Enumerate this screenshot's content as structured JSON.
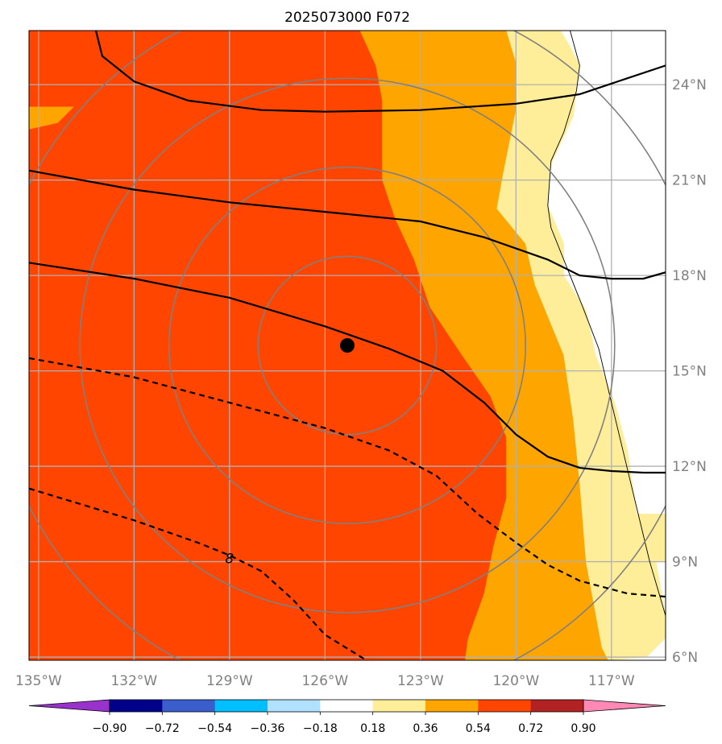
{
  "chart_data": {
    "type": "heatmap",
    "title": "2025073000 F072",
    "projection": "lon-lat map",
    "x_range": [
      -135.3,
      -115.3
    ],
    "y_range": [
      5.9,
      25.7
    ],
    "xticks": [
      {
        "value": -135,
        "label": "135°W"
      },
      {
        "value": -132,
        "label": "132°W"
      },
      {
        "value": -129,
        "label": "129°W"
      },
      {
        "value": -126,
        "label": "126°W"
      },
      {
        "value": -123,
        "label": "123°W"
      },
      {
        "value": -120,
        "label": "120°W"
      },
      {
        "value": -117,
        "label": "117°W"
      }
    ],
    "yticks": [
      {
        "value": 6,
        "label": "6°N"
      },
      {
        "value": 9,
        "label": "9°N"
      },
      {
        "value": 12,
        "label": "12°N"
      },
      {
        "value": 15,
        "label": "15°N"
      },
      {
        "value": 18,
        "label": "18°N"
      },
      {
        "value": 21,
        "label": "21°N"
      },
      {
        "value": 24,
        "label": "24°N"
      }
    ],
    "grid": true,
    "colorbar": {
      "orientation": "horizontal",
      "extend": "both",
      "levels": [
        "−0.90",
        "−0.72",
        "−0.54",
        "−0.36",
        "−0.18",
        "0.18",
        "0.36",
        "0.54",
        "0.72",
        "0.90"
      ],
      "colors": [
        "#9932cc",
        "#00008b",
        "#3a5fcd",
        "#00bfff",
        "#b0e2ff",
        "#ffffff",
        "#ffee99",
        "#ffa500",
        "#ff4500",
        "#b22222",
        "#ff88b4"
      ]
    },
    "filled_regions": [
      {
        "color": "#ff4500",
        "range": "0.54–0.72",
        "coords": [
          [
            -135.3,
            5.9
          ],
          [
            -135.3,
            25.7
          ],
          [
            -124.9,
            25.7
          ],
          [
            -124.4,
            24.6
          ],
          [
            -124.2,
            23.5
          ],
          [
            -124.2,
            21.0
          ],
          [
            -123.8,
            19.8
          ],
          [
            -123.2,
            18.5
          ],
          [
            -122.7,
            17.0
          ],
          [
            -121.7,
            15.5
          ],
          [
            -120.8,
            14.2
          ],
          [
            -120.3,
            12.9
          ],
          [
            -120.3,
            11.0
          ],
          [
            -120.7,
            9.5
          ],
          [
            -121.0,
            8.0
          ],
          [
            -121.5,
            6.6
          ],
          [
            -121.6,
            5.9
          ]
        ]
      },
      {
        "color": "#ffa500",
        "range": "0.36–0.54",
        "coords": [
          [
            -121.6,
            5.9
          ],
          [
            -121.5,
            6.6
          ],
          [
            -121.0,
            8.0
          ],
          [
            -120.7,
            9.5
          ],
          [
            -120.3,
            11.0
          ],
          [
            -120.3,
            12.9
          ],
          [
            -120.8,
            14.2
          ],
          [
            -121.7,
            15.5
          ],
          [
            -122.7,
            17.0
          ],
          [
            -123.2,
            18.5
          ],
          [
            -123.8,
            19.8
          ],
          [
            -124.2,
            21.0
          ],
          [
            -124.2,
            23.5
          ],
          [
            -124.4,
            24.6
          ],
          [
            -124.9,
            25.7
          ],
          [
            -120.3,
            25.7
          ],
          [
            -120.0,
            24.7
          ],
          [
            -120.0,
            23.2
          ],
          [
            -120.4,
            21.2
          ],
          [
            -120.6,
            20.1
          ],
          [
            -119.7,
            19.0
          ],
          [
            -119.4,
            17.7
          ],
          [
            -118.5,
            15.5
          ],
          [
            -118.2,
            13.5
          ],
          [
            -118.0,
            11.5
          ],
          [
            -117.8,
            9.0
          ],
          [
            -117.3,
            6.3
          ],
          [
            -117.1,
            5.9
          ]
        ]
      },
      {
        "color": "#ffa500",
        "range": "0.36–0.54",
        "coords": [
          [
            -135.3,
            22.6
          ],
          [
            -134.4,
            22.8
          ],
          [
            -133.9,
            23.3
          ],
          [
            -135.3,
            23.3
          ]
        ]
      },
      {
        "color": "#ffee99",
        "range": "0.18–0.36",
        "coords": [
          [
            -117.1,
            5.9
          ],
          [
            -117.3,
            6.3
          ],
          [
            -117.8,
            9.0
          ],
          [
            -118.0,
            11.5
          ],
          [
            -118.2,
            13.5
          ],
          [
            -118.5,
            15.5
          ],
          [
            -119.4,
            17.7
          ],
          [
            -119.7,
            19.0
          ],
          [
            -120.6,
            20.1
          ],
          [
            -120.4,
            21.2
          ],
          [
            -120.0,
            23.2
          ],
          [
            -120.0,
            24.7
          ],
          [
            -120.3,
            25.7
          ],
          [
            -118.6,
            25.7
          ],
          [
            -118.3,
            25.2
          ],
          [
            -118.0,
            24.6
          ],
          [
            -118.2,
            23.0
          ],
          [
            -118.9,
            21.5
          ],
          [
            -119.0,
            20.2
          ],
          [
            -118.5,
            19.0
          ],
          [
            -118.5,
            18.0
          ],
          [
            -117.8,
            16.9
          ],
          [
            -117.5,
            15.5
          ],
          [
            -116.9,
            14.0
          ],
          [
            -116.5,
            12.5
          ],
          [
            -116.2,
            10.5
          ],
          [
            -115.6,
            9.0
          ],
          [
            -115.3,
            7.3
          ],
          [
            -115.3,
            6.6
          ],
          [
            -115.9,
            6.0
          ]
        ]
      },
      {
        "color": "#ffee99",
        "range": "0.18–0.36",
        "coords": [
          [
            -116.2,
            10.5
          ],
          [
            -115.6,
            9.0
          ],
          [
            -115.3,
            9.0
          ],
          [
            -115.3,
            10.5
          ]
        ]
      }
    ],
    "coastline": [
      [
        -118.3,
        25.7
      ],
      [
        -118.0,
        24.6
      ],
      [
        -118.1,
        23.8
      ],
      [
        -118.5,
        22.5
      ],
      [
        -118.9,
        21.6
      ],
      [
        -119.0,
        20.2
      ],
      [
        -118.9,
        19.5
      ],
      [
        -118.5,
        18.5
      ],
      [
        -117.9,
        17.0
      ],
      [
        -117.4,
        15.7
      ],
      [
        -117.0,
        14.0
      ],
      [
        -116.4,
        11.5
      ],
      [
        -115.8,
        9.0
      ],
      [
        -115.3,
        7.3
      ]
    ],
    "range_rings_center": [
      -125.3,
      15.8
    ],
    "range_rings_radius_deg": [
      2.8,
      5.6,
      8.4,
      11.2
    ],
    "center_marker": {
      "lon": -125.3,
      "lat": 15.8,
      "label": ""
    },
    "contours": [
      {
        "style": "solid",
        "label": "",
        "coords": [
          [
            -133.2,
            25.7
          ],
          [
            -133.0,
            24.9
          ],
          [
            -132.0,
            24.1
          ],
          [
            -130.3,
            23.5
          ],
          [
            -128.0,
            23.2
          ],
          [
            -126.0,
            23.15
          ],
          [
            -123.0,
            23.2
          ],
          [
            -120.0,
            23.4
          ],
          [
            -118.0,
            23.7
          ],
          [
            -116.5,
            24.2
          ],
          [
            -115.3,
            24.6
          ]
        ]
      },
      {
        "style": "solid",
        "label": "",
        "coords": [
          [
            -135.3,
            21.3
          ],
          [
            -132.0,
            20.7
          ],
          [
            -129.0,
            20.3
          ],
          [
            -126.0,
            20.0
          ],
          [
            -123.0,
            19.7
          ],
          [
            -121.0,
            19.2
          ],
          [
            -119.0,
            18.5
          ],
          [
            -118.0,
            18.0
          ],
          [
            -117.0,
            17.9
          ],
          [
            -116.0,
            17.9
          ],
          [
            -115.3,
            18.1
          ]
        ]
      },
      {
        "style": "solid",
        "label": "",
        "coords": [
          [
            -135.3,
            18.4
          ],
          [
            -132.0,
            17.9
          ],
          [
            -129.0,
            17.3
          ],
          [
            -126.0,
            16.4
          ],
          [
            -124.0,
            15.7
          ],
          [
            -122.3,
            15.0
          ],
          [
            -121.0,
            14.0
          ],
          [
            -120.0,
            13.0
          ],
          [
            -119.0,
            12.3
          ],
          [
            -118.0,
            11.95
          ],
          [
            -117.0,
            11.85
          ],
          [
            -116.0,
            11.8
          ],
          [
            -115.3,
            11.8
          ]
        ]
      },
      {
        "style": "dashed",
        "label": "",
        "coords": [
          [
            -135.3,
            15.4
          ],
          [
            -132.0,
            14.8
          ],
          [
            -129.0,
            14.0
          ],
          [
            -126.0,
            13.2
          ],
          [
            -124.0,
            12.5
          ],
          [
            -122.5,
            11.7
          ],
          [
            -121.2,
            10.5
          ],
          [
            -120.0,
            9.6
          ],
          [
            -119.0,
            8.9
          ],
          [
            -118.0,
            8.4
          ],
          [
            -116.5,
            8.0
          ],
          [
            -115.3,
            7.9
          ]
        ]
      },
      {
        "style": "dashed",
        "label": "8",
        "label_at": [
          -129.0,
          9.1
        ],
        "coords": [
          [
            -135.3,
            11.3
          ],
          [
            -132.0,
            10.3
          ],
          [
            -130.0,
            9.6
          ],
          [
            -129.0,
            9.2
          ],
          [
            -128.0,
            8.7
          ],
          [
            -127.0,
            7.8
          ],
          [
            -126.0,
            6.7
          ],
          [
            -124.7,
            5.9
          ]
        ]
      }
    ]
  }
}
